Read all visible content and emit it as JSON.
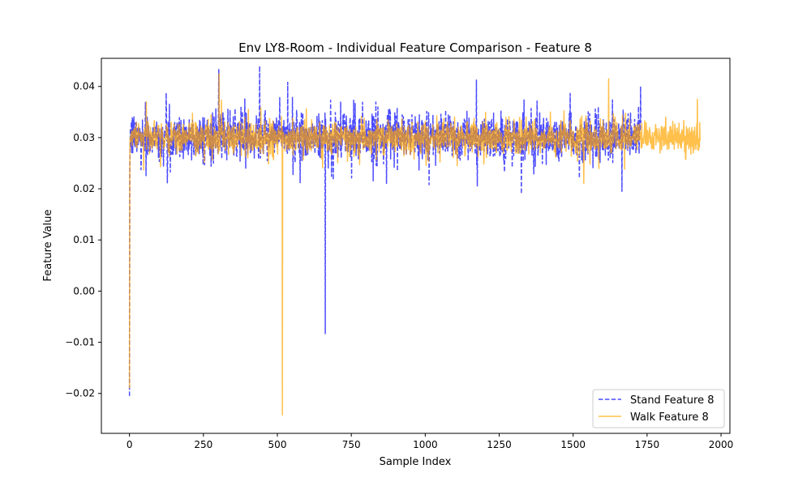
{
  "chart_data": {
    "type": "line",
    "title": "Env LY8-Room - Individual Feature Comparison - Feature 8",
    "xlabel": "Sample Index",
    "ylabel": "Feature Value",
    "xlim": [
      -95,
      2030
    ],
    "ylim": [
      -0.0278,
      0.0455
    ],
    "x_ticks": [
      0,
      250,
      500,
      750,
      1000,
      1250,
      1500,
      1750,
      2000
    ],
    "y_ticks": [
      -0.02,
      -0.01,
      0.0,
      0.01,
      0.02,
      0.03,
      0.04
    ],
    "x_tick_labels": [
      "0",
      "250",
      "500",
      "750",
      "1000",
      "1250",
      "1500",
      "1750",
      "2000"
    ],
    "y_tick_labels": [
      "−0.02",
      "−0.01",
      "0.00",
      "0.01",
      "0.02",
      "0.03",
      "0.04"
    ],
    "grid": false,
    "legend_position": "lower-right",
    "series": [
      {
        "name": "Stand Feature 8",
        "color": "#0000ff",
        "alpha": 0.7,
        "linestyle": "dashed",
        "n_samples": 1730,
        "base": 0.0302,
        "spread": 0.0032,
        "excursions": [
          {
            "x": 0,
            "y": -0.0205
          },
          {
            "x": 1,
            "y": 0.023
          },
          {
            "x": 302,
            "y": 0.0433
          },
          {
            "x": 440,
            "y": 0.044
          },
          {
            "x": 662,
            "y": -0.0083
          },
          {
            "x": 1325,
            "y": 0.019
          },
          {
            "x": 1665,
            "y": 0.0195
          },
          {
            "x": 1728,
            "y": 0.04
          }
        ]
      },
      {
        "name": "Walk Feature 8",
        "color": "#ffa500",
        "alpha": 0.7,
        "linestyle": "solid",
        "n_samples": 1930,
        "base": 0.03,
        "spread": 0.0022,
        "excursions": [
          {
            "x": 0,
            "y": -0.019
          },
          {
            "x": 1,
            "y": 0.022
          },
          {
            "x": 303,
            "y": 0.0425
          },
          {
            "x": 517,
            "y": -0.0242
          },
          {
            "x": 1620,
            "y": 0.0415
          },
          {
            "x": 1920,
            "y": 0.0375
          }
        ]
      }
    ]
  }
}
